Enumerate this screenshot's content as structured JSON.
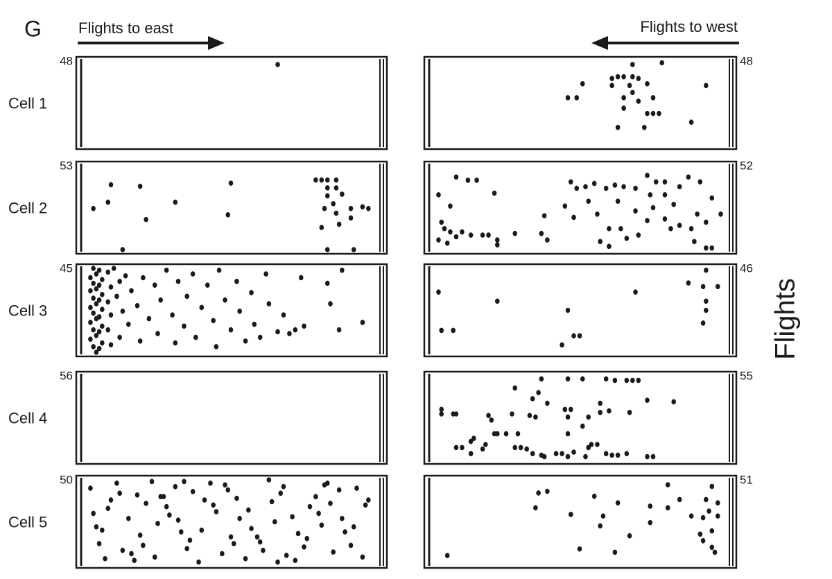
{
  "panel_label": "G",
  "headers": [
    "Flights to east",
    "Flights to west"
  ],
  "y_label": "Flights",
  "chart_data": [
    {
      "type": "scatter",
      "label": "Cell 1",
      "color": "#1a1a1a",
      "xlim": [
        0,
        100
      ],
      "ylim": [
        0,
        48
      ],
      "yticks": [
        48
      ],
      "x": [
        66
      ],
      "y": [
        46
      ]
    },
    {
      "type": "scatter",
      "color": "#1a1a1a",
      "xlim": [
        0,
        100
      ],
      "ylim": [
        0,
        48
      ],
      "yticks": [
        48
      ],
      "x": [
        78,
        68,
        93,
        51,
        46,
        49,
        61,
        63,
        65,
        68,
        70,
        61,
        67,
        73,
        65,
        68,
        75,
        65,
        70,
        73,
        75,
        77,
        63,
        72,
        88
      ],
      "y": [
        47,
        46,
        34,
        35,
        27,
        27,
        38,
        39,
        39,
        39,
        38,
        34,
        34,
        35,
        27,
        30,
        27,
        21,
        25,
        18,
        18,
        18,
        10,
        10,
        13
      ]
    },
    {
      "type": "scatter",
      "label": "Cell 2",
      "color": "#1a1a1a",
      "xlim": [
        0,
        100
      ],
      "ylim": [
        0,
        53
      ],
      "yticks": [
        53
      ],
      "x": [
        3,
        9,
        8,
        19,
        31,
        21,
        13,
        50,
        49,
        79,
        81,
        83,
        86,
        83,
        86,
        83,
        88,
        85,
        82,
        91,
        95,
        97,
        86,
        91,
        81,
        87,
        83,
        92
      ],
      "y": [
        26,
        41,
        30,
        40,
        30,
        19,
        0,
        42,
        22,
        44,
        44,
        44,
        44,
        39,
        39,
        34,
        35,
        29,
        26,
        26,
        27,
        26,
        23,
        20,
        14,
        16,
        0,
        0
      ]
    },
    {
      "type": "scatter",
      "color": "#1a1a1a",
      "xlim": [
        0,
        100
      ],
      "ylim": [
        0,
        52
      ],
      "yticks": [
        52
      ],
      "x": [
        2,
        8,
        12,
        15,
        21,
        6,
        3,
        4,
        6,
        2,
        5,
        8,
        10,
        13,
        17,
        19,
        22,
        22,
        28,
        37,
        39,
        38,
        45,
        47,
        49,
        52,
        55,
        59,
        62,
        65,
        69,
        73,
        76,
        79,
        84,
        87,
        91,
        95,
        98,
        48,
        53,
        56,
        60,
        64,
        66,
        57,
        60,
        69,
        73,
        75,
        79,
        82,
        84,
        88,
        90,
        93,
        93,
        95,
        89,
        70,
        63,
        74,
        79,
        81
      ],
      "y": [
        34,
        45,
        43,
        43,
        35,
        27,
        17,
        13,
        11,
        6,
        4,
        8,
        11,
        9,
        9,
        9,
        6,
        3,
        10,
        10,
        6,
        21,
        27,
        42,
        38,
        39,
        41,
        38,
        40,
        39,
        38,
        46,
        42,
        42,
        39,
        45,
        42,
        32,
        22,
        20,
        30,
        22,
        13,
        13,
        7,
        5,
        2,
        24,
        18,
        26,
        19,
        28,
        15,
        13,
        22,
        17,
        1,
        1,
        5,
        9,
        30,
        34,
        34,
        13
      ]
    },
    {
      "type": "scatter",
      "label": "Cell 3",
      "color": "#1a1a1a",
      "xlim": [
        0,
        100
      ],
      "ylim": [
        0,
        45
      ],
      "yticks": [
        45
      ],
      "x": [
        3,
        5,
        4,
        2,
        6,
        3,
        5,
        4,
        2,
        6,
        3,
        5,
        4,
        2,
        6,
        3,
        5,
        4,
        2,
        6,
        3,
        5,
        4,
        2,
        6,
        3,
        5,
        4,
        8,
        9,
        8,
        9,
        8,
        9,
        10,
        11,
        12,
        13,
        12,
        14,
        15,
        16,
        18,
        19,
        20,
        22,
        24,
        25,
        26,
        28,
        30,
        31,
        32,
        34,
        35,
        37,
        38,
        40,
        42,
        44,
        45,
        46,
        48,
        50,
        52,
        53,
        55,
        57,
        58,
        60,
        62,
        63,
        66,
        68,
        70,
        74,
        72,
        75,
        83,
        84,
        87,
        88,
        95
      ],
      "y": [
        45,
        44,
        42,
        40,
        39,
        37,
        36,
        34,
        33,
        31,
        29,
        28,
        26,
        24,
        23,
        21,
        19,
        18,
        16,
        14,
        12,
        11,
        9,
        7,
        5,
        3,
        2,
        0,
        43,
        35,
        27,
        20,
        12,
        4,
        45,
        30,
        38,
        22,
        8,
        41,
        15,
        33,
        25,
        6,
        40,
        18,
        36,
        10,
        28,
        44,
        20,
        5,
        38,
        14,
        30,
        42,
        8,
        24,
        36,
        17,
        3,
        44,
        28,
        12,
        38,
        22,
        6,
        32,
        15,
        8,
        42,
        26,
        11,
        20,
        10,
        40,
        12,
        14,
        37,
        26,
        12,
        44,
        16
      ]
    },
    {
      "type": "scatter",
      "color": "#1a1a1a",
      "xlim": [
        0,
        100
      ],
      "ylim": [
        0,
        46
      ],
      "yticks": [
        46
      ],
      "x": [
        2,
        22,
        69,
        87,
        93,
        92,
        97,
        93,
        93,
        92,
        3,
        7,
        46,
        48,
        50,
        44
      ],
      "y": [
        33,
        28,
        33,
        38,
        45,
        36,
        36,
        28,
        23,
        16,
        12,
        12,
        23,
        9,
        9,
        4
      ]
    },
    {
      "type": "scatter",
      "label": "Cell 4",
      "color": "#1a1a1a",
      "xlim": [
        0,
        100
      ],
      "ylim": [
        0,
        56
      ],
      "yticks": [
        56
      ],
      "x": [],
      "y": []
    },
    {
      "type": "scatter",
      "color": "#1a1a1a",
      "xlim": [
        0,
        100
      ],
      "ylim": [
        0,
        55
      ],
      "yticks": [
        55
      ],
      "x": [
        3,
        7,
        8,
        3,
        28,
        37,
        46,
        51,
        59,
        62,
        66,
        68,
        70,
        36,
        34,
        39,
        33,
        35,
        19,
        20,
        27,
        45,
        47,
        57,
        57,
        60,
        67,
        73,
        82,
        46,
        53,
        51,
        46,
        21,
        22,
        25,
        29,
        14,
        13,
        8,
        10,
        13,
        17,
        18,
        30,
        32,
        34,
        37,
        38,
        42,
        44,
        46,
        48,
        52,
        53,
        54,
        56,
        59,
        61,
        63,
        66,
        73,
        75,
        28
      ],
      "y": [
        30,
        30,
        30,
        33,
        47,
        53,
        53,
        53,
        53,
        52,
        52,
        52,
        52,
        44,
        40,
        37,
        29,
        28,
        29,
        26,
        30,
        33,
        33,
        37,
        31,
        32,
        31,
        39,
        38,
        28,
        28,
        22,
        17,
        17,
        17,
        17,
        17,
        14,
        12,
        8,
        8,
        4,
        7,
        10,
        8,
        7,
        4,
        3,
        2,
        4,
        4,
        2,
        5,
        2,
        8,
        10,
        10,
        4,
        3,
        3,
        4,
        2,
        2,
        8
      ]
    },
    {
      "type": "scatter",
      "label": "Cell 5",
      "color": "#1a1a1a",
      "xlim": [
        0,
        100
      ],
      "ylim": [
        0,
        50
      ],
      "yticks": [
        50
      ],
      "x": [
        3,
        5,
        2,
        7,
        9,
        4,
        11,
        13,
        8,
        15,
        17,
        12,
        19,
        21,
        16,
        23,
        25,
        20,
        27,
        29,
        24,
        31,
        33,
        28,
        35,
        37,
        32,
        39,
        41,
        36,
        43,
        45,
        40,
        47,
        49,
        44,
        51,
        53,
        48,
        55,
        57,
        52,
        59,
        61,
        56,
        63,
        65,
        60,
        67,
        69,
        64,
        71,
        73,
        68,
        75,
        77,
        72,
        79,
        81,
        76,
        83,
        85,
        80,
        87,
        89,
        84,
        91,
        93,
        88,
        95,
        97,
        92,
        6,
        18,
        34,
        50,
        66,
        82,
        96,
        26
      ],
      "y": [
        30,
        12,
        45,
        3,
        38,
        22,
        48,
        8,
        33,
        27,
        2,
        42,
        17,
        36,
        6,
        49,
        24,
        11,
        40,
        29,
        4,
        46,
        19,
        34,
        9,
        43,
        26,
        1,
        38,
        14,
        48,
        31,
        20,
        6,
        44,
        35,
        12,
        27,
        47,
        3,
        21,
        39,
        16,
        8,
        32,
        50,
        25,
        13,
        42,
        5,
        37,
        28,
        18,
        46,
        10,
        34,
        2,
        40,
        23,
        15,
        48,
        7,
        30,
        44,
        19,
        36,
        11,
        45,
        27,
        4,
        38,
        22,
        20,
        41,
        49,
        16,
        1,
        47,
        35,
        40
      ]
    },
    {
      "type": "scatter",
      "color": "#1a1a1a",
      "xlim": [
        0,
        100
      ],
      "ylim": [
        0,
        51
      ],
      "yticks": [
        51
      ],
      "x": [
        80,
        95,
        97,
        93,
        94,
        97,
        92,
        88,
        84,
        80,
        74,
        74,
        67,
        63,
        55,
        58,
        57,
        50,
        62,
        47,
        35,
        36,
        39,
        5,
        91,
        92,
        95,
        96,
        95
      ],
      "y": [
        48,
        47,
        37,
        39,
        32,
        29,
        28,
        29,
        39,
        34,
        35,
        25,
        17,
        37,
        41,
        29,
        23,
        9,
        7,
        30,
        34,
        43,
        44,
        5,
        18,
        14,
        10,
        7,
        20
      ]
    }
  ]
}
